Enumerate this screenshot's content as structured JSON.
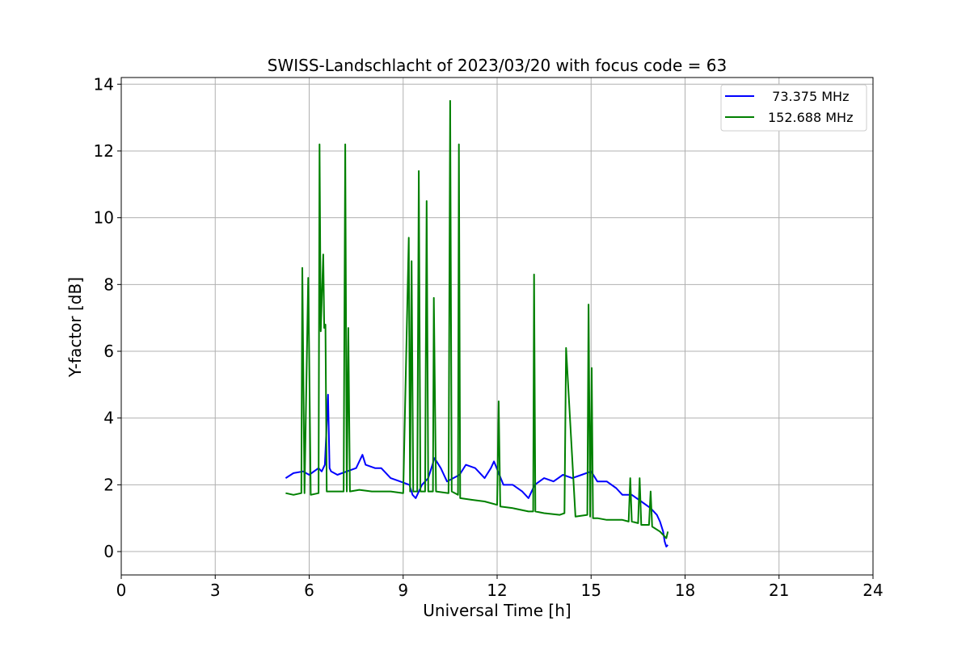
{
  "chart_data": {
    "type": "line",
    "title": "SWISS-Landschlacht of 2023/03/20 with focus code = 63",
    "xlabel": "Universal Time [h]",
    "ylabel": "Y-factor [dB]",
    "xlim": [
      0,
      24
    ],
    "ylim": [
      -0.7,
      14.2
    ],
    "xticks": [
      0,
      3,
      6,
      9,
      12,
      15,
      18,
      21,
      24
    ],
    "yticks": [
      0,
      2,
      4,
      6,
      8,
      10,
      12,
      14
    ],
    "grid": true,
    "legend_position": "top-right",
    "series": [
      {
        "name": "  73.375 MHz",
        "color": "#0000ff",
        "x": [
          5.25,
          5.5,
          5.8,
          6.0,
          6.3,
          6.4,
          6.5,
          6.6,
          6.65,
          6.7,
          6.9,
          7.2,
          7.5,
          7.7,
          7.8,
          8.1,
          8.3,
          8.6,
          8.9,
          9.2,
          9.3,
          9.4,
          9.6,
          9.8,
          10.0,
          10.2,
          10.4,
          10.6,
          10.8,
          11.0,
          11.3,
          11.6,
          11.8,
          11.9,
          12.2,
          12.5,
          12.8,
          13.0,
          13.2,
          13.5,
          13.8,
          14.1,
          14.4,
          14.7,
          15.0,
          15.2,
          15.5,
          15.8,
          16.0,
          16.3,
          16.6,
          16.9,
          17.1,
          17.2,
          17.3,
          17.35,
          17.4,
          17.45
        ],
        "y": [
          2.2,
          2.35,
          2.4,
          2.3,
          2.5,
          2.4,
          2.6,
          4.7,
          2.5,
          2.4,
          2.3,
          2.4,
          2.5,
          2.9,
          2.6,
          2.5,
          2.5,
          2.2,
          2.1,
          2.0,
          1.7,
          1.6,
          2.0,
          2.2,
          2.8,
          2.5,
          2.1,
          2.2,
          2.3,
          2.6,
          2.5,
          2.2,
          2.5,
          2.7,
          2.0,
          2.0,
          1.8,
          1.6,
          2.0,
          2.2,
          2.1,
          2.3,
          2.2,
          2.3,
          2.4,
          2.1,
          2.1,
          1.9,
          1.7,
          1.7,
          1.5,
          1.3,
          1.1,
          0.9,
          0.6,
          0.3,
          0.15,
          0.2
        ]
      },
      {
        "name": "152.688 MHz",
        "color": "#008000",
        "x": [
          5.25,
          5.5,
          5.75,
          5.78,
          5.85,
          5.97,
          6.0,
          6.05,
          6.3,
          6.33,
          6.37,
          6.45,
          6.48,
          6.52,
          6.56,
          6.6,
          7.1,
          7.15,
          7.2,
          7.25,
          7.3,
          7.6,
          8.0,
          8.6,
          9.0,
          9.18,
          9.22,
          9.27,
          9.32,
          9.45,
          9.5,
          9.55,
          9.7,
          9.75,
          9.8,
          9.95,
          9.98,
          10.05,
          10.45,
          10.5,
          10.55,
          10.75,
          10.78,
          10.82,
          11.2,
          11.6,
          12.0,
          12.05,
          12.1,
          12.5,
          13.0,
          13.15,
          13.18,
          13.22,
          13.5,
          14.0,
          14.15,
          14.2,
          14.5,
          14.88,
          14.92,
          14.97,
          15.02,
          15.06,
          15.2,
          15.5,
          16.0,
          16.2,
          16.25,
          16.3,
          16.5,
          16.55,
          16.6,
          16.85,
          16.9,
          16.95,
          17.2,
          17.4,
          17.45
        ],
        "y": [
          1.75,
          1.7,
          1.75,
          8.5,
          1.75,
          8.2,
          5.9,
          1.7,
          1.75,
          12.2,
          6.6,
          8.9,
          6.7,
          6.8,
          1.8,
          1.8,
          1.8,
          12.2,
          1.8,
          6.7,
          1.8,
          1.85,
          1.8,
          1.8,
          1.75,
          9.4,
          1.8,
          8.7,
          1.8,
          1.8,
          11.4,
          1.8,
          1.8,
          10.5,
          1.8,
          1.8,
          7.6,
          1.8,
          1.75,
          13.5,
          1.8,
          1.7,
          12.2,
          1.6,
          1.55,
          1.5,
          1.4,
          4.5,
          1.35,
          1.3,
          1.2,
          1.2,
          8.3,
          1.2,
          1.15,
          1.1,
          1.15,
          6.1,
          1.05,
          1.1,
          7.4,
          1.05,
          5.5,
          1.0,
          1.0,
          0.95,
          0.95,
          0.9,
          2.2,
          0.9,
          0.85,
          2.2,
          0.8,
          0.8,
          1.8,
          0.75,
          0.6,
          0.4,
          0.6
        ]
      }
    ]
  }
}
